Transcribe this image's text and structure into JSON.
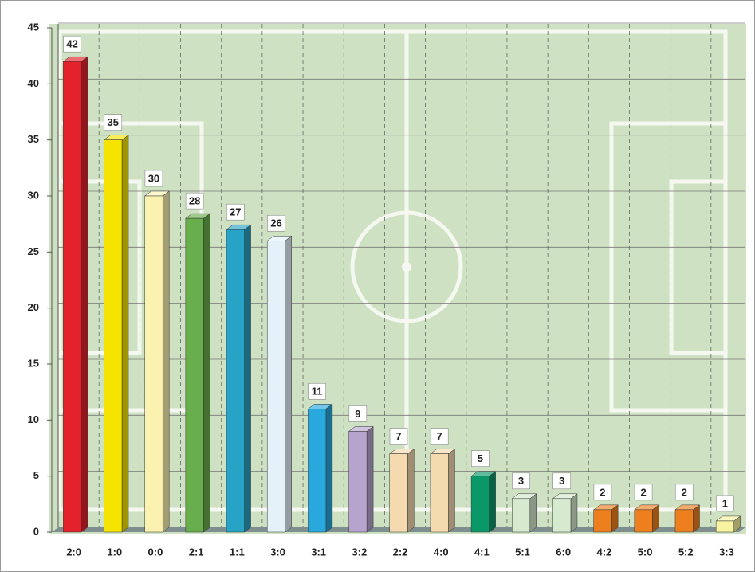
{
  "chart_data": {
    "type": "bar",
    "categories": [
      "2:0",
      "1:0",
      "0:0",
      "2:1",
      "1:1",
      "3:0",
      "3:1",
      "3:2",
      "2:2",
      "4:0",
      "4:1",
      "5:1",
      "6:0",
      "4:2",
      "5:0",
      "5:2",
      "3:3"
    ],
    "values": [
      42,
      35,
      30,
      28,
      27,
      26,
      11,
      9,
      7,
      7,
      5,
      3,
      3,
      2,
      2,
      2,
      1
    ],
    "colors": [
      "#e3222b",
      "#f6e300",
      "#fbf2b0",
      "#69ae4c",
      "#27a3c6",
      "#e4f1f8",
      "#28a8dc",
      "#b7a4cd",
      "#f5dab0",
      "#f5dab0",
      "#0b9868",
      "#d6ead0",
      "#d6ead0",
      "#ee7f1e",
      "#ee7f1e",
      "#ee7f1e",
      "#f7f3a0"
    ],
    "ylim": [
      0,
      45
    ],
    "yticks": [
      0,
      5,
      10,
      15,
      20,
      25,
      30,
      35,
      40,
      45
    ],
    "grid": true
  }
}
